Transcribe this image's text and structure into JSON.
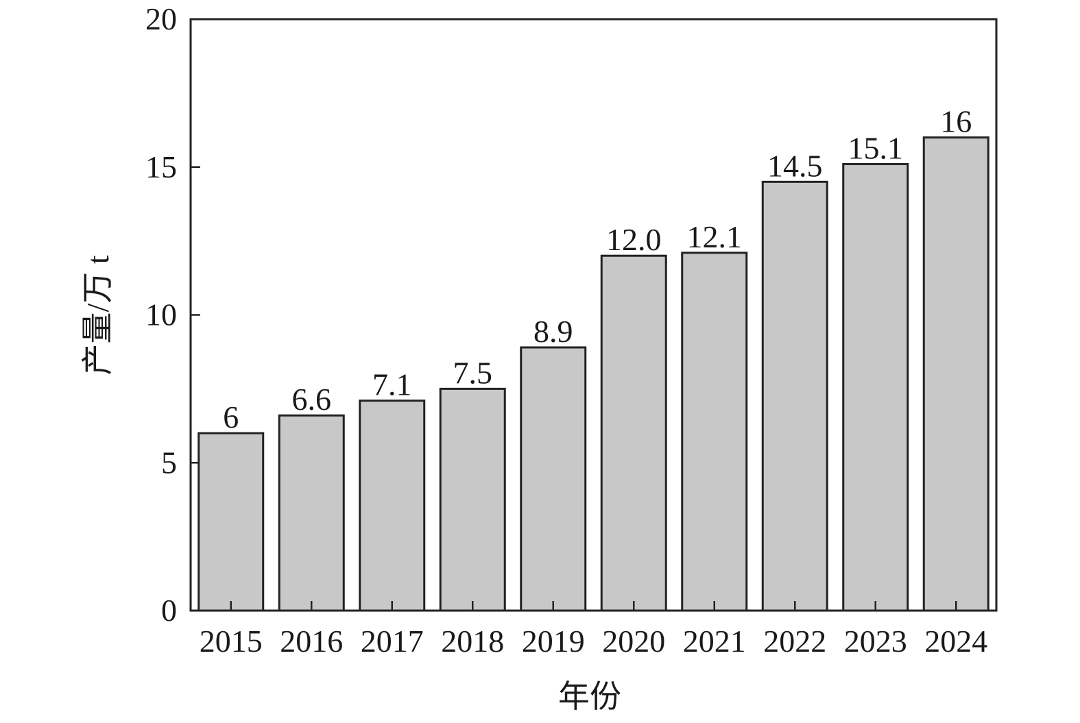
{
  "chart_data": {
    "type": "bar",
    "xlabel": "年份",
    "ylabel": "产量/万 t",
    "categories": [
      "2015",
      "2016",
      "2017",
      "2018",
      "2019",
      "2020",
      "2021",
      "2022",
      "2023",
      "2024"
    ],
    "values": [
      6,
      6.6,
      7.1,
      7.5,
      8.9,
      12.0,
      12.1,
      14.5,
      15.1,
      16
    ],
    "value_labels": [
      "6",
      "6.6",
      "7.1",
      "7.5",
      "8.9",
      "12.0",
      "12.1",
      "14.5",
      "15.1",
      "16"
    ],
    "color": "#c8c8c8",
    "ylim": [
      0,
      20
    ],
    "yticks": [
      0,
      5,
      10,
      15,
      20
    ]
  }
}
